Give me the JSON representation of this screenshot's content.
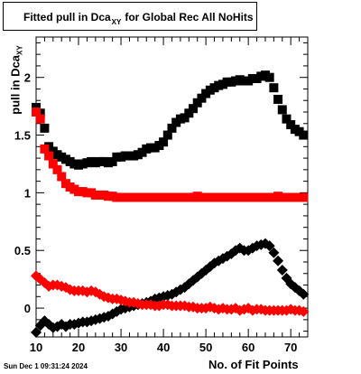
{
  "title": {
    "prefix": "Fitted pull in Dca",
    "subscript": "XY",
    "suffix": "for Global Rec All NoHits"
  },
  "ylabel": {
    "main": "pull in Dca",
    "subscript": "XY"
  },
  "xlabel": "No. of Fit Points",
  "timestamp": "Sun Dec  1 09:31:24 2024",
  "chart_data": {
    "type": "scatter",
    "xlim": [
      10,
      74
    ],
    "ylim": [
      -0.25,
      2.35
    ],
    "x_ticks": [
      10,
      20,
      30,
      40,
      50,
      60,
      70
    ],
    "x_tick_labels": [
      "10",
      "20",
      "30",
      "40",
      "50",
      "60",
      "70"
    ],
    "y_ticks": [
      0,
      0.5,
      1,
      1.5,
      2
    ],
    "y_tick_labels": [
      "0",
      "0.5",
      "1",
      "1.5",
      "2"
    ],
    "grid": false,
    "series": [
      {
        "marker": "square",
        "color": "#000000",
        "x": [
          10,
          11,
          12,
          13,
          14,
          15,
          16,
          17,
          18,
          19,
          20,
          21,
          22,
          23,
          24,
          25,
          26,
          27,
          28,
          29,
          30,
          31,
          32,
          33,
          34,
          35,
          36,
          37,
          38,
          39,
          40,
          41,
          42,
          43,
          44,
          45,
          46,
          47,
          48,
          49,
          50,
          51,
          52,
          53,
          54,
          55,
          56,
          57,
          58,
          59,
          60,
          61,
          62,
          63,
          64,
          65,
          66,
          67,
          68,
          69,
          70,
          71,
          72,
          73
        ],
        "y": [
          1.74,
          1.69,
          1.56,
          1.4,
          1.36,
          1.33,
          1.31,
          1.29,
          1.27,
          1.25,
          1.24,
          1.25,
          1.26,
          1.27,
          1.26,
          1.27,
          1.27,
          1.26,
          1.27,
          1.31,
          1.31,
          1.32,
          1.32,
          1.32,
          1.33,
          1.35,
          1.38,
          1.39,
          1.39,
          1.41,
          1.44,
          1.5,
          1.56,
          1.61,
          1.64,
          1.65,
          1.69,
          1.73,
          1.78,
          1.82,
          1.86,
          1.89,
          1.91,
          1.93,
          1.94,
          1.96,
          1.96,
          1.97,
          1.98,
          1.97,
          1.97,
          1.99,
          1.99,
          2.01,
          2.02,
          2.0,
          1.91,
          1.81,
          1.72,
          1.64,
          1.59,
          1.55,
          1.53,
          1.5
        ]
      },
      {
        "marker": "square",
        "color": "#ff0000",
        "x": [
          10,
          11,
          12,
          13,
          14,
          15,
          16,
          17,
          18,
          19,
          20,
          21,
          22,
          23,
          24,
          25,
          26,
          27,
          28,
          29,
          30,
          31,
          32,
          33,
          34,
          35,
          36,
          37,
          38,
          39,
          40,
          41,
          42,
          43,
          44,
          45,
          46,
          47,
          48,
          49,
          50,
          51,
          52,
          53,
          54,
          55,
          56,
          57,
          58,
          59,
          60,
          61,
          62,
          63,
          64,
          65,
          66,
          67,
          68,
          69,
          70,
          71,
          72,
          73
        ],
        "y": [
          1.7,
          1.64,
          1.38,
          1.32,
          1.25,
          1.2,
          1.14,
          1.08,
          1.05,
          1.03,
          1.01,
          1.01,
          1.0,
          1.0,
          0.98,
          0.98,
          0.98,
          0.97,
          0.97,
          0.96,
          0.96,
          0.96,
          0.96,
          0.96,
          0.96,
          0.96,
          0.96,
          0.96,
          0.96,
          0.96,
          0.96,
          0.96,
          0.96,
          0.96,
          0.96,
          0.96,
          0.96,
          0.96,
          0.97,
          0.96,
          0.96,
          0.96,
          0.96,
          0.96,
          0.96,
          0.96,
          0.96,
          0.96,
          0.96,
          0.96,
          0.96,
          0.96,
          0.96,
          0.96,
          0.96,
          0.96,
          0.96,
          0.97,
          0.96,
          0.96,
          0.96,
          0.96,
          0.96,
          0.96
        ]
      },
      {
        "marker": "diamond",
        "color": "#000000",
        "x": [
          10,
          11,
          12,
          13,
          14,
          15,
          16,
          17,
          18,
          19,
          20,
          21,
          22,
          23,
          24,
          25,
          26,
          27,
          28,
          29,
          30,
          31,
          32,
          33,
          34,
          35,
          36,
          37,
          38,
          39,
          40,
          41,
          42,
          43,
          44,
          45,
          46,
          47,
          48,
          49,
          50,
          51,
          52,
          53,
          54,
          55,
          56,
          57,
          58,
          59,
          60,
          61,
          62,
          63,
          64,
          65,
          66,
          67,
          68,
          69,
          70,
          71,
          72,
          73
        ],
        "y": [
          -0.21,
          -0.15,
          -0.11,
          -0.14,
          -0.17,
          -0.16,
          -0.14,
          -0.16,
          -0.14,
          -0.14,
          -0.13,
          -0.12,
          -0.12,
          -0.11,
          -0.1,
          -0.09,
          -0.08,
          -0.07,
          -0.05,
          -0.03,
          -0.01,
          0.0,
          0.01,
          0.02,
          0.03,
          0.04,
          0.05,
          0.06,
          0.08,
          0.09,
          0.1,
          0.11,
          0.12,
          0.14,
          0.16,
          0.18,
          0.21,
          0.24,
          0.27,
          0.3,
          0.33,
          0.36,
          0.39,
          0.41,
          0.43,
          0.45,
          0.47,
          0.5,
          0.52,
          0.5,
          0.5,
          0.52,
          0.54,
          0.55,
          0.56,
          0.54,
          0.48,
          0.41,
          0.33,
          0.26,
          0.21,
          0.18,
          0.15,
          0.12
        ]
      },
      {
        "marker": "diamond",
        "color": "#ff0000",
        "x": [
          10,
          11,
          12,
          13,
          14,
          15,
          16,
          17,
          18,
          19,
          20,
          21,
          22,
          23,
          24,
          25,
          26,
          27,
          28,
          29,
          30,
          31,
          32,
          33,
          34,
          35,
          36,
          37,
          38,
          39,
          40,
          41,
          42,
          43,
          44,
          45,
          46,
          47,
          48,
          49,
          50,
          51,
          52,
          53,
          54,
          55,
          56,
          57,
          58,
          59,
          60,
          61,
          62,
          63,
          64,
          65,
          66,
          67,
          68,
          69,
          70,
          71,
          72,
          73
        ],
        "y": [
          0.28,
          0.25,
          0.22,
          0.19,
          0.2,
          0.2,
          0.19,
          0.18,
          0.16,
          0.15,
          0.15,
          0.15,
          0.14,
          0.15,
          0.14,
          0.12,
          0.1,
          0.09,
          0.08,
          0.08,
          0.07,
          0.06,
          0.05,
          0.05,
          0.04,
          0.03,
          0.03,
          0.03,
          0.02,
          0.02,
          0.03,
          0.03,
          0.02,
          0.02,
          0.02,
          0.02,
          0.01,
          0.01,
          0.0,
          0.0,
          0.0,
          0.01,
          0.0,
          -0.01,
          0.0,
          -0.01,
          -0.01,
          0.0,
          -0.02,
          -0.01,
          0.0,
          -0.02,
          -0.01,
          -0.01,
          -0.02,
          -0.02,
          -0.02,
          -0.02,
          -0.02,
          -0.02,
          -0.01,
          -0.02,
          -0.02,
          -0.03
        ]
      }
    ]
  }
}
